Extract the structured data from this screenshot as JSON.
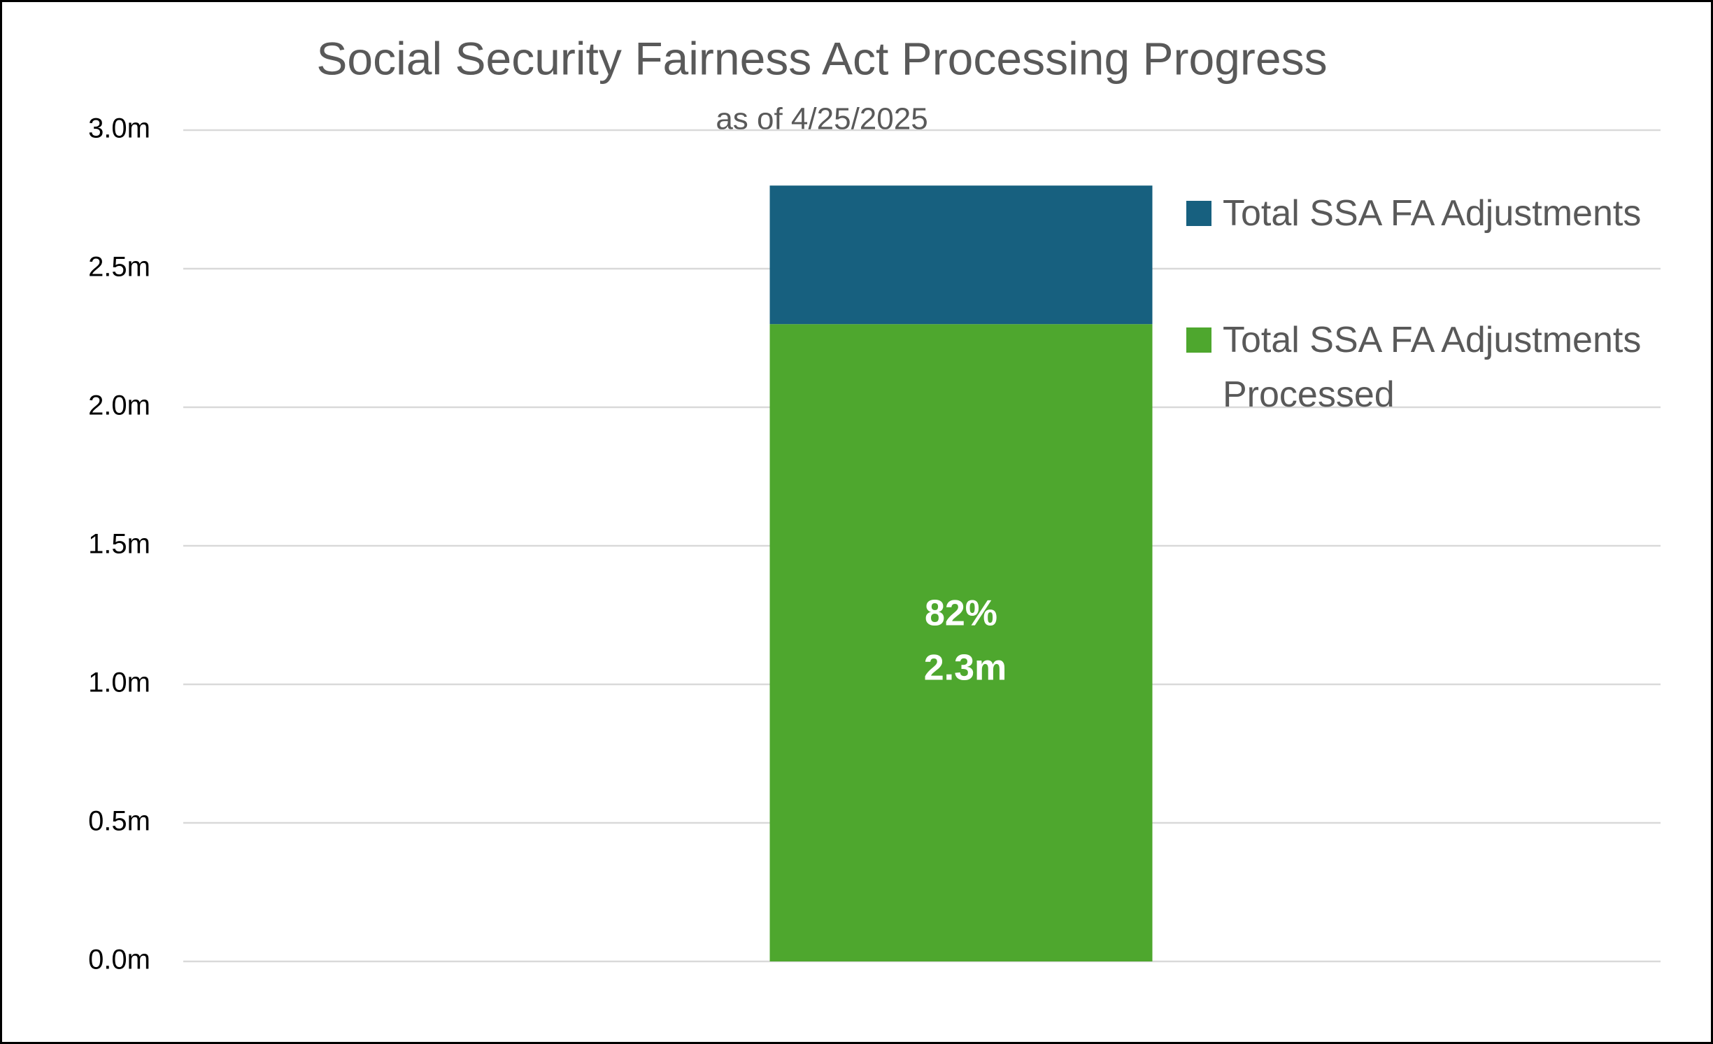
{
  "chart_data": {
    "type": "stacked_bar",
    "title": "Social Security Fairness Act Processing Progress",
    "subtitle": "as of 4/25/2025",
    "categories": [
      null
    ],
    "series": [
      {
        "name": "Total SSA FA Adjustments Processed",
        "color": "#4ea72e",
        "values": [
          2.3
        ],
        "value_labels": [
          "2.3m"
        ],
        "percent_labels": [
          "82%"
        ]
      },
      {
        "name": "Total SSA FA Adjustments",
        "color": "#17607f",
        "values": [
          0.5
        ]
      }
    ],
    "ylim": [
      0,
      3
    ],
    "yticks": [
      {
        "value": 0,
        "label": "0.0m"
      },
      {
        "value": 0.5,
        "label": "0.5m"
      },
      {
        "value": 1,
        "label": "1.0m"
      },
      {
        "value": 1.5,
        "label": "1.5m"
      },
      {
        "value": 2,
        "label": "2.0m"
      },
      {
        "value": 2.5,
        "label": "2.5m"
      },
      {
        "value": 3,
        "label": "3.0m"
      }
    ],
    "grid": true,
    "legend": "right"
  }
}
